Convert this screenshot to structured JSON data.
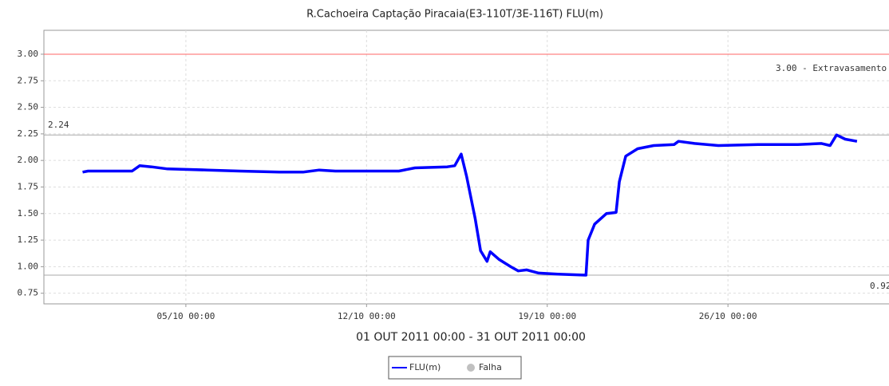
{
  "chart_data": {
    "type": "line",
    "title": "R.Cachoeira Captação Piracaia(E3-110T/3E-116T) FLU(m)",
    "x_label": "01 OUT 2011 00:00 - 31 OUT 2011 00:00",
    "x": [
      "01/10 00:00",
      "01/10 05:00",
      "02/10 22:00",
      "03/10 05:00",
      "03/10 16:00",
      "04/10 07:00",
      "05/10 20:00",
      "07/10 02:00",
      "08/10 15:00",
      "09/10 13:00",
      "10/10 04:00",
      "10/10 19:00",
      "11/10 10:00",
      "13/10 06:00",
      "13/10 21:00",
      "15/10 03:00",
      "15/10 10:00",
      "15/10 16:00",
      "15/10 21:00",
      "16/10 05:00",
      "16/10 10:00",
      "16/10 16:00",
      "16/10 19:00",
      "17/10 03:00",
      "17/10 14:00",
      "17/10 21:00",
      "18/10 05:00",
      "18/10 16:00",
      "19/10 10:00",
      "20/10 12:00",
      "20/10 14:00",
      "20/10 20:00",
      "21/10 07:00",
      "21/10 16:00",
      "21/10 19:00",
      "22/10 01:00",
      "22/10 12:00",
      "23/10 03:00",
      "23/10 22:00",
      "24/10 02:00",
      "24/10 17:00",
      "25/10 15:00",
      "27/10 04:00",
      "28/10 17:00",
      "29/10 15:00",
      "29/10 23:00",
      "30/10 05:00",
      "30/10 13:00",
      "31/10 00:00"
    ],
    "series": [
      {
        "name": "FLU(m)",
        "color": "#0000ff",
        "values": [
          1.89,
          1.9,
          1.9,
          1.95,
          1.94,
          1.92,
          1.91,
          1.9,
          1.89,
          1.89,
          1.91,
          1.9,
          1.9,
          1.9,
          1.93,
          1.94,
          1.95,
          2.06,
          1.85,
          1.45,
          1.15,
          1.05,
          1.14,
          1.07,
          1.0,
          0.96,
          0.97,
          0.94,
          0.93,
          0.92,
          1.25,
          1.4,
          1.5,
          1.51,
          1.8,
          2.04,
          2.11,
          2.14,
          2.15,
          2.18,
          2.16,
          2.14,
          2.15,
          2.15,
          2.16,
          2.14,
          2.24,
          2.2,
          2.18
        ]
      }
    ],
    "failure_marker": {
      "name": "Falha",
      "color": "#c0c0c0"
    },
    "xlim": [
      "29/09 12:00",
      "01/11 05:00"
    ],
    "xticks": [
      "05/10 00:00",
      "12/10 00:00",
      "19/10 00:00",
      "26/10 00:00"
    ],
    "ylim": [
      0.65,
      3.225
    ],
    "yticks": [
      {
        "value": 0.75,
        "label": "0.75"
      },
      {
        "value": 1,
        "label": "1.00"
      },
      {
        "value": 1.25,
        "label": "1.25"
      },
      {
        "value": 1.5,
        "label": "1.50"
      },
      {
        "value": 1.75,
        "label": "1.75"
      },
      {
        "value": 2,
        "label": "2.00"
      },
      {
        "value": 2.25,
        "label": "2.25"
      },
      {
        "value": 2.5,
        "label": "2.50"
      },
      {
        "value": 2.75,
        "label": "2.75"
      },
      {
        "value": 3,
        "label": "3.00"
      }
    ],
    "reference_lines": [
      {
        "value": 3.0,
        "label": "3.00 - Extravasamento",
        "color": "#ff6666"
      },
      {
        "value": 2.24,
        "label": "2.24",
        "color": "#aaaaaa"
      },
      {
        "value": 0.92,
        "label": "0.92",
        "color": "#aaaaaa"
      }
    ],
    "grid": true
  }
}
